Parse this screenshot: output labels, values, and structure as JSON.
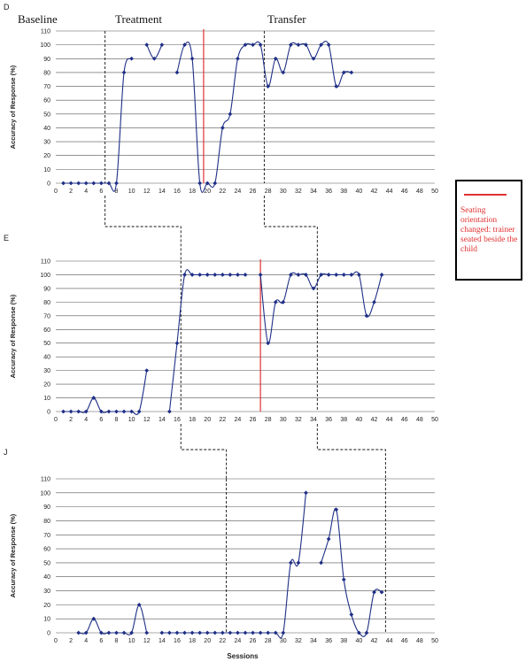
{
  "x_title": "Sessions",
  "y_title": "Accuracy of Response (%)",
  "phases": {
    "baseline": "Baseline",
    "treatment": "Treatment",
    "transfer": "Transfer"
  },
  "legend": {
    "text": "Seating orientation changed: trainer seated beside the child",
    "line_color": "#e23030"
  },
  "colors": {
    "series": "#1f2f86",
    "change_line": "#e23030",
    "grid": "#555555"
  },
  "chart_data": [
    {
      "type": "line",
      "panel": "D",
      "xlim": [
        0,
        50
      ],
      "ylim": [
        0,
        110
      ],
      "x_ticks": [
        0,
        2,
        4,
        6,
        8,
        10,
        12,
        14,
        16,
        18,
        20,
        22,
        24,
        26,
        28,
        30,
        32,
        34,
        36,
        38,
        40,
        42,
        44,
        46,
        48,
        50
      ],
      "y_ticks": [
        0,
        10,
        20,
        30,
        40,
        50,
        60,
        70,
        80,
        90,
        100,
        110
      ],
      "phase_change_sessions": [
        6.5,
        27.5
      ],
      "seating_change_session": 19.5,
      "series": [
        {
          "points": [
            [
              1,
              0
            ],
            [
              2,
              0
            ],
            [
              3,
              0
            ],
            [
              4,
              0
            ],
            [
              5,
              0
            ],
            [
              6,
              0
            ],
            [
              7,
              0
            ],
            [
              8,
              0
            ],
            [
              9,
              80
            ],
            [
              10,
              90
            ]
          ]
        },
        {
          "points": [
            [
              12,
              100
            ],
            [
              13,
              90
            ],
            [
              14,
              100
            ]
          ]
        },
        {
          "points": [
            [
              16,
              80
            ],
            [
              17,
              100
            ],
            [
              18,
              90
            ],
            [
              19,
              0
            ],
            [
              20,
              0
            ],
            [
              21,
              0
            ],
            [
              22,
              40
            ],
            [
              23,
              50
            ],
            [
              24,
              90
            ],
            [
              25,
              100
            ],
            [
              26,
              100
            ],
            [
              27,
              100
            ],
            [
              28,
              70
            ],
            [
              29,
              90
            ],
            [
              30,
              80
            ],
            [
              31,
              100
            ],
            [
              32,
              100
            ],
            [
              33,
              100
            ],
            [
              34,
              90
            ],
            [
              35,
              100
            ],
            [
              36,
              100
            ],
            [
              37,
              70
            ],
            [
              38,
              80
            ],
            [
              39,
              80
            ]
          ]
        }
      ]
    },
    {
      "type": "line",
      "panel": "E",
      "xlim": [
        0,
        50
      ],
      "ylim": [
        0,
        110
      ],
      "x_ticks": [
        0,
        2,
        4,
        6,
        8,
        10,
        12,
        14,
        16,
        18,
        20,
        22,
        24,
        26,
        28,
        30,
        32,
        34,
        36,
        38,
        40,
        42,
        44,
        46,
        48,
        50
      ],
      "y_ticks": [
        0,
        10,
        20,
        30,
        40,
        50,
        60,
        70,
        80,
        90,
        100,
        110
      ],
      "phase_change_sessions": [
        16.5,
        34.5
      ],
      "seating_change_session": 27,
      "series": [
        {
          "points": [
            [
              1,
              0
            ],
            [
              2,
              0
            ],
            [
              3,
              0
            ],
            [
              4,
              0
            ],
            [
              5,
              10
            ],
            [
              6,
              0
            ],
            [
              7,
              0
            ],
            [
              8,
              0
            ],
            [
              9,
              0
            ],
            [
              10,
              0
            ],
            [
              11,
              0
            ],
            [
              12,
              30
            ]
          ]
        },
        {
          "points": [
            [
              15,
              0
            ],
            [
              16,
              50
            ],
            [
              17,
              100
            ],
            [
              18,
              100
            ],
            [
              19,
              100
            ],
            [
              20,
              100
            ],
            [
              21,
              100
            ],
            [
              22,
              100
            ],
            [
              23,
              100
            ],
            [
              24,
              100
            ],
            [
              25,
              100
            ]
          ]
        },
        {
          "points": [
            [
              27,
              100
            ],
            [
              28,
              50
            ],
            [
              29,
              80
            ],
            [
              30,
              80
            ],
            [
              31,
              100
            ],
            [
              32,
              100
            ],
            [
              33,
              100
            ],
            [
              34,
              90
            ],
            [
              35,
              100
            ],
            [
              36,
              100
            ],
            [
              37,
              100
            ],
            [
              38,
              100
            ],
            [
              39,
              100
            ],
            [
              40,
              100
            ],
            [
              41,
              70
            ],
            [
              42,
              80
            ],
            [
              43,
              100
            ]
          ]
        }
      ]
    },
    {
      "type": "line",
      "panel": "J",
      "xlim": [
        0,
        50
      ],
      "ylim": [
        0,
        110
      ],
      "x_ticks": [
        0,
        2,
        4,
        6,
        8,
        10,
        12,
        14,
        16,
        18,
        20,
        22,
        24,
        26,
        28,
        30,
        32,
        34,
        36,
        38,
        40,
        42,
        44,
        46,
        48,
        50
      ],
      "y_ticks": [
        0,
        10,
        20,
        30,
        40,
        50,
        60,
        70,
        80,
        90,
        100,
        110
      ],
      "phase_change_sessions": [
        22.5,
        43.5
      ],
      "series": [
        {
          "points": [
            [
              3,
              0
            ],
            [
              4,
              0
            ],
            [
              5,
              10
            ],
            [
              6,
              0
            ],
            [
              7,
              0
            ],
            [
              8,
              0
            ],
            [
              9,
              0
            ],
            [
              10,
              0
            ],
            [
              11,
              20
            ],
            [
              12,
              0
            ]
          ]
        },
        {
          "points": [
            [
              14,
              0
            ],
            [
              15,
              0
            ],
            [
              16,
              0
            ],
            [
              17,
              0
            ],
            [
              18,
              0
            ],
            [
              19,
              0
            ],
            [
              20,
              0
            ],
            [
              21,
              0
            ],
            [
              22,
              0
            ],
            [
              23,
              0
            ],
            [
              24,
              0
            ],
            [
              25,
              0
            ],
            [
              26,
              0
            ],
            [
              27,
              0
            ],
            [
              28,
              0
            ],
            [
              29,
              0
            ],
            [
              30,
              0
            ],
            [
              31,
              50
            ],
            [
              32,
              50
            ],
            [
              33,
              100
            ]
          ]
        },
        {
          "points": [
            [
              35,
              50
            ],
            [
              36,
              67
            ],
            [
              37,
              88
            ],
            [
              38,
              38
            ],
            [
              39,
              13
            ],
            [
              40,
              0
            ],
            [
              41,
              0
            ],
            [
              42,
              29
            ],
            [
              43,
              29
            ]
          ]
        }
      ]
    }
  ]
}
